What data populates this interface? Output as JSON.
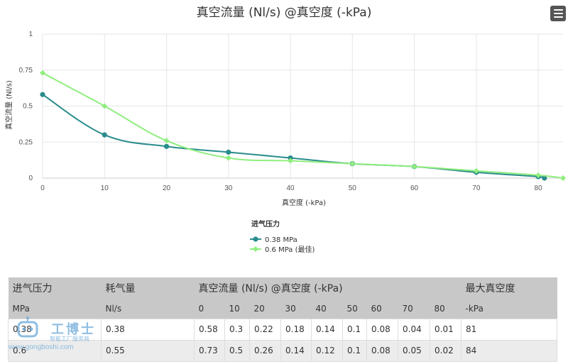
{
  "chart_data": {
    "type": "line",
    "title": "真空流量 (Nl/s) @真空度 (-kPa)",
    "xlabel": "真空度 (-kPa)",
    "ylabel": "真空流量 (Nl/s)",
    "xlim": [
      0,
      84
    ],
    "ylim": [
      0,
      1
    ],
    "x_ticks": [
      0,
      10,
      20,
      30,
      40,
      50,
      60,
      70,
      80
    ],
    "y_ticks": [
      0,
      0.25,
      0.5,
      0.75,
      1
    ],
    "y_tick_labels": [
      "0",
      "0.25",
      "0.5",
      "0.75",
      "1"
    ],
    "grid": true,
    "legend": {
      "title": "进气压力",
      "position": "bottom-center"
    },
    "series": [
      {
        "name": "0.38 MPa",
        "color": "#2a8c8c",
        "marker": "circle",
        "x": [
          0,
          10,
          20,
          30,
          40,
          50,
          60,
          70,
          80,
          81
        ],
        "y": [
          0.58,
          0.3,
          0.22,
          0.18,
          0.14,
          0.1,
          0.08,
          0.04,
          0.01,
          0
        ]
      },
      {
        "name": "0.6 MPa (最佳)",
        "color": "#90ee7e",
        "marker": "diamond",
        "x": [
          0,
          10,
          20,
          30,
          40,
          50,
          60,
          70,
          80,
          84
        ],
        "y": [
          0.73,
          0.5,
          0.26,
          0.14,
          0.12,
          0.1,
          0.08,
          0.05,
          0.02,
          0
        ]
      }
    ]
  },
  "table": {
    "header_top": [
      "进气压力",
      "耗气量",
      "真空流量 (Nl/s) @真空度 (-kPa)",
      "最大真空度"
    ],
    "header_sub": [
      "MPa",
      "Nl/s",
      "0",
      "10",
      "20",
      "30",
      "40",
      "50",
      "60",
      "70",
      "80",
      "-kPa"
    ],
    "rows": [
      [
        "0.38",
        "0.38",
        "0.58",
        "0.3",
        "0.22",
        "0.18",
        "0.14",
        "0.1",
        "0.08",
        "0.04",
        "0.01",
        "81"
      ],
      [
        "0.6",
        "0.55",
        "0.73",
        "0.5",
        "0.26",
        "0.14",
        "0.12",
        "0.1",
        "0.08",
        "0.05",
        "0.02",
        "84"
      ]
    ]
  },
  "watermark": {
    "brand": "工博士",
    "subtitle": "智能工厂服务商",
    "url": "www.gongboshi.com"
  },
  "menu": {
    "icon": "hamburger-menu-icon"
  }
}
